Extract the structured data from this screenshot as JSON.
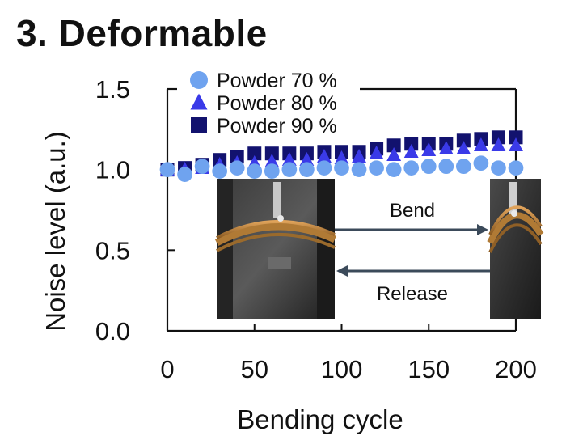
{
  "heading": "3. Deformable",
  "chart_data": {
    "type": "scatter",
    "xlabel": "Bending cycle",
    "ylabel": "Noise level (a.u.)",
    "xlim": [
      0,
      200
    ],
    "ylim": [
      0,
      1.5
    ],
    "xticks": [
      "0",
      "50",
      "100",
      "150",
      "200"
    ],
    "yticks": [
      "0.0",
      "0.5",
      "1.0",
      "1.5"
    ],
    "grid": false,
    "legend_position": "top-left",
    "x": [
      0,
      10,
      20,
      30,
      40,
      50,
      60,
      70,
      80,
      90,
      100,
      110,
      120,
      130,
      140,
      150,
      160,
      170,
      180,
      190,
      200
    ],
    "series": [
      {
        "name": "Powder 70 %",
        "marker": "circle",
        "color": "#6fa3ef",
        "values": [
          1.0,
          0.97,
          1.02,
          0.99,
          1.01,
          0.99,
          0.99,
          1.0,
          1.0,
          1.01,
          1.01,
          1.0,
          1.01,
          1.0,
          1.01,
          1.02,
          1.02,
          1.02,
          1.04,
          1.01,
          1.01
        ]
      },
      {
        "name": "Powder 80 %",
        "marker": "triangle",
        "color": "#3a3ae8",
        "values": [
          1.0,
          1.0,
          1.01,
          1.03,
          1.04,
          1.04,
          1.05,
          1.06,
          1.06,
          1.08,
          1.07,
          1.08,
          1.1,
          1.09,
          1.11,
          1.12,
          1.13,
          1.13,
          1.15,
          1.15,
          1.15
        ]
      },
      {
        "name": "Powder 90 %",
        "marker": "square",
        "color": "#12126e",
        "values": [
          1.0,
          1.01,
          1.03,
          1.06,
          1.08,
          1.1,
          1.1,
          1.1,
          1.1,
          1.11,
          1.11,
          1.11,
          1.13,
          1.15,
          1.16,
          1.16,
          1.16,
          1.18,
          1.19,
          1.2,
          1.2
        ]
      }
    ],
    "inset": {
      "bend_label": "Bend",
      "release_label": "Release"
    }
  }
}
